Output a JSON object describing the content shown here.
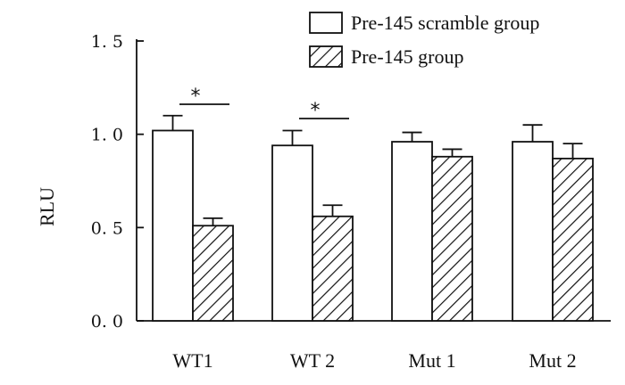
{
  "chart_data": {
    "type": "bar",
    "title": "",
    "xlabel": "",
    "ylabel": "RLU",
    "ylim": [
      0,
      1.5
    ],
    "yticks": [
      {
        "value": 0.0,
        "label": "0. 0"
      },
      {
        "value": 0.5,
        "label": "0. 5"
      },
      {
        "value": 1.0,
        "label": "1. 0"
      },
      {
        "value": 1.5,
        "label": "1. 5"
      }
    ],
    "categories": [
      "WT1",
      "WT 2",
      "Mut 1",
      "Mut 2"
    ],
    "series": [
      {
        "name": "Pre-145 scramble group",
        "pattern": "solid",
        "values": [
          1.02,
          0.94,
          0.96,
          0.96
        ],
        "errors": [
          0.08,
          0.08,
          0.05,
          0.09
        ]
      },
      {
        "name": "Pre-145 group",
        "pattern": "hatched",
        "values": [
          0.51,
          0.56,
          0.88,
          0.87
        ],
        "errors": [
          0.04,
          0.06,
          0.04,
          0.08
        ]
      }
    ],
    "significance": [
      {
        "category": "WT1",
        "label": "*"
      },
      {
        "category": "WT 2",
        "label": "*"
      }
    ],
    "legend_position": "top-right",
    "grid": false
  }
}
